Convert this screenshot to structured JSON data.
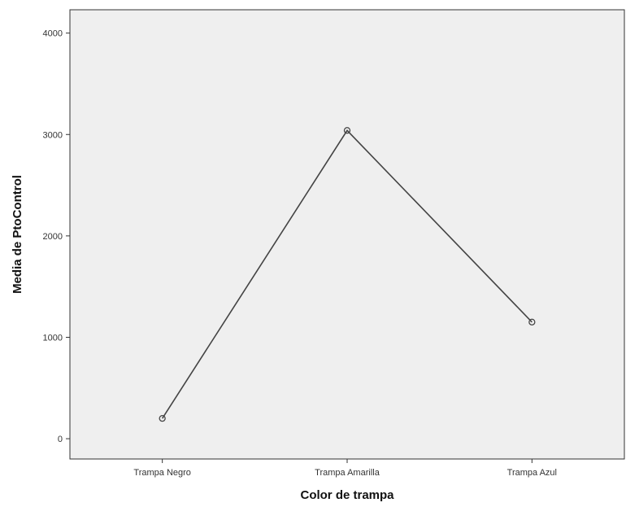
{
  "chart_data": {
    "type": "line",
    "categories": [
      "Trampa Negro",
      "Trampa Amarilla",
      "Trampa Azul"
    ],
    "values": [
      200,
      3040,
      1150
    ],
    "xlabel": "Color de trampa",
    "ylabel": "Media de PtoControl",
    "ylim": [
      -200,
      4230
    ],
    "yticks": [
      0,
      1000,
      2000,
      3000,
      4000
    ],
    "grid": false,
    "legend": "none",
    "colors": {
      "plot_background": "#efefef",
      "line": "#444444",
      "marker_edge": "#444444",
      "axis": "#333333"
    }
  }
}
